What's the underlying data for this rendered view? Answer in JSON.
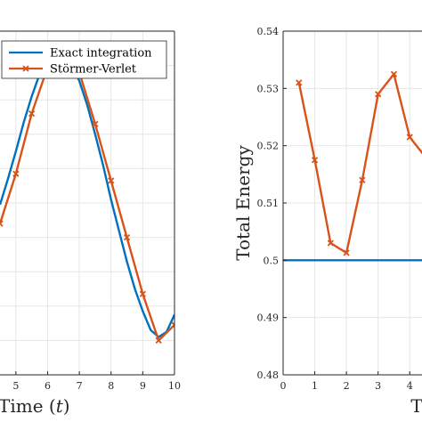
{
  "chart_data": [
    {
      "type": "line",
      "title": "",
      "xlabel": "Time (t)",
      "ylabel": "",
      "xlim": [
        4.5,
        10
      ],
      "ylim": [
        -0.8,
        1.2
      ],
      "grid": true,
      "legend_position": "top-left",
      "x_ticks": [
        "5",
        "6",
        "7",
        "8",
        "9",
        "10"
      ],
      "x_tick_values": [
        5,
        6,
        7,
        8,
        9,
        10
      ],
      "series": [
        {
          "name": "Exact integration",
          "color": "#0072BD",
          "marker": "none",
          "x": [
            4.5,
            4.75,
            5.0,
            5.25,
            5.5,
            5.75,
            6.0,
            6.25,
            6.5,
            6.75,
            7.0,
            7.25,
            7.5,
            7.75,
            8.0,
            8.25,
            8.5,
            8.75,
            9.0,
            9.25,
            9.5,
            9.75,
            10.0
          ],
          "y": [
            0.19,
            0.34,
            0.5,
            0.67,
            0.82,
            0.95,
            1.04,
            1.08,
            1.07,
            1.01,
            0.91,
            0.77,
            0.6,
            0.42,
            0.22,
            0.04,
            -0.14,
            -0.3,
            -0.43,
            -0.54,
            -0.58,
            -0.55,
            -0.45
          ]
        },
        {
          "name": "Störmer-Verlet",
          "color": "#D95319",
          "marker": "x",
          "x": [
            4.5,
            5.0,
            5.5,
            6.0,
            6.5,
            7.0,
            7.5,
            8.0,
            8.5,
            9.0,
            9.5,
            10.0
          ],
          "y": [
            0.08,
            0.37,
            0.72,
            0.99,
            1.1,
            0.96,
            0.66,
            0.33,
            0.0,
            -0.33,
            -0.6,
            -0.51
          ]
        }
      ]
    },
    {
      "type": "line",
      "title": "",
      "xlabel": "T",
      "ylabel": "Total Energy",
      "xlim": [
        0,
        4.5
      ],
      "ylim": [
        0.48,
        0.54
      ],
      "grid": true,
      "x_ticks": [
        "0",
        "1",
        "2",
        "3",
        "4"
      ],
      "x_tick_values": [
        0,
        1,
        2,
        3,
        4
      ],
      "y_ticks": [
        "0.48",
        "0.49",
        "0.5",
        "0.51",
        "0.52",
        "0.53",
        "0.54"
      ],
      "y_tick_values": [
        0.48,
        0.49,
        0.5,
        0.51,
        0.52,
        0.53,
        0.54
      ],
      "series": [
        {
          "name": "Exact integration",
          "color": "#0072BD",
          "marker": "none",
          "x": [
            0,
            4.5
          ],
          "y": [
            0.5,
            0.5
          ]
        },
        {
          "name": "Störmer-Verlet",
          "color": "#D95319",
          "marker": "x",
          "x": [
            0.5,
            1.0,
            1.5,
            2.0,
            2.5,
            3.0,
            3.5,
            4.0,
            4.5
          ],
          "y": [
            0.531,
            0.5175,
            0.503,
            0.5013,
            0.514,
            0.529,
            0.5325,
            0.5215,
            0.518
          ]
        }
      ]
    }
  ]
}
